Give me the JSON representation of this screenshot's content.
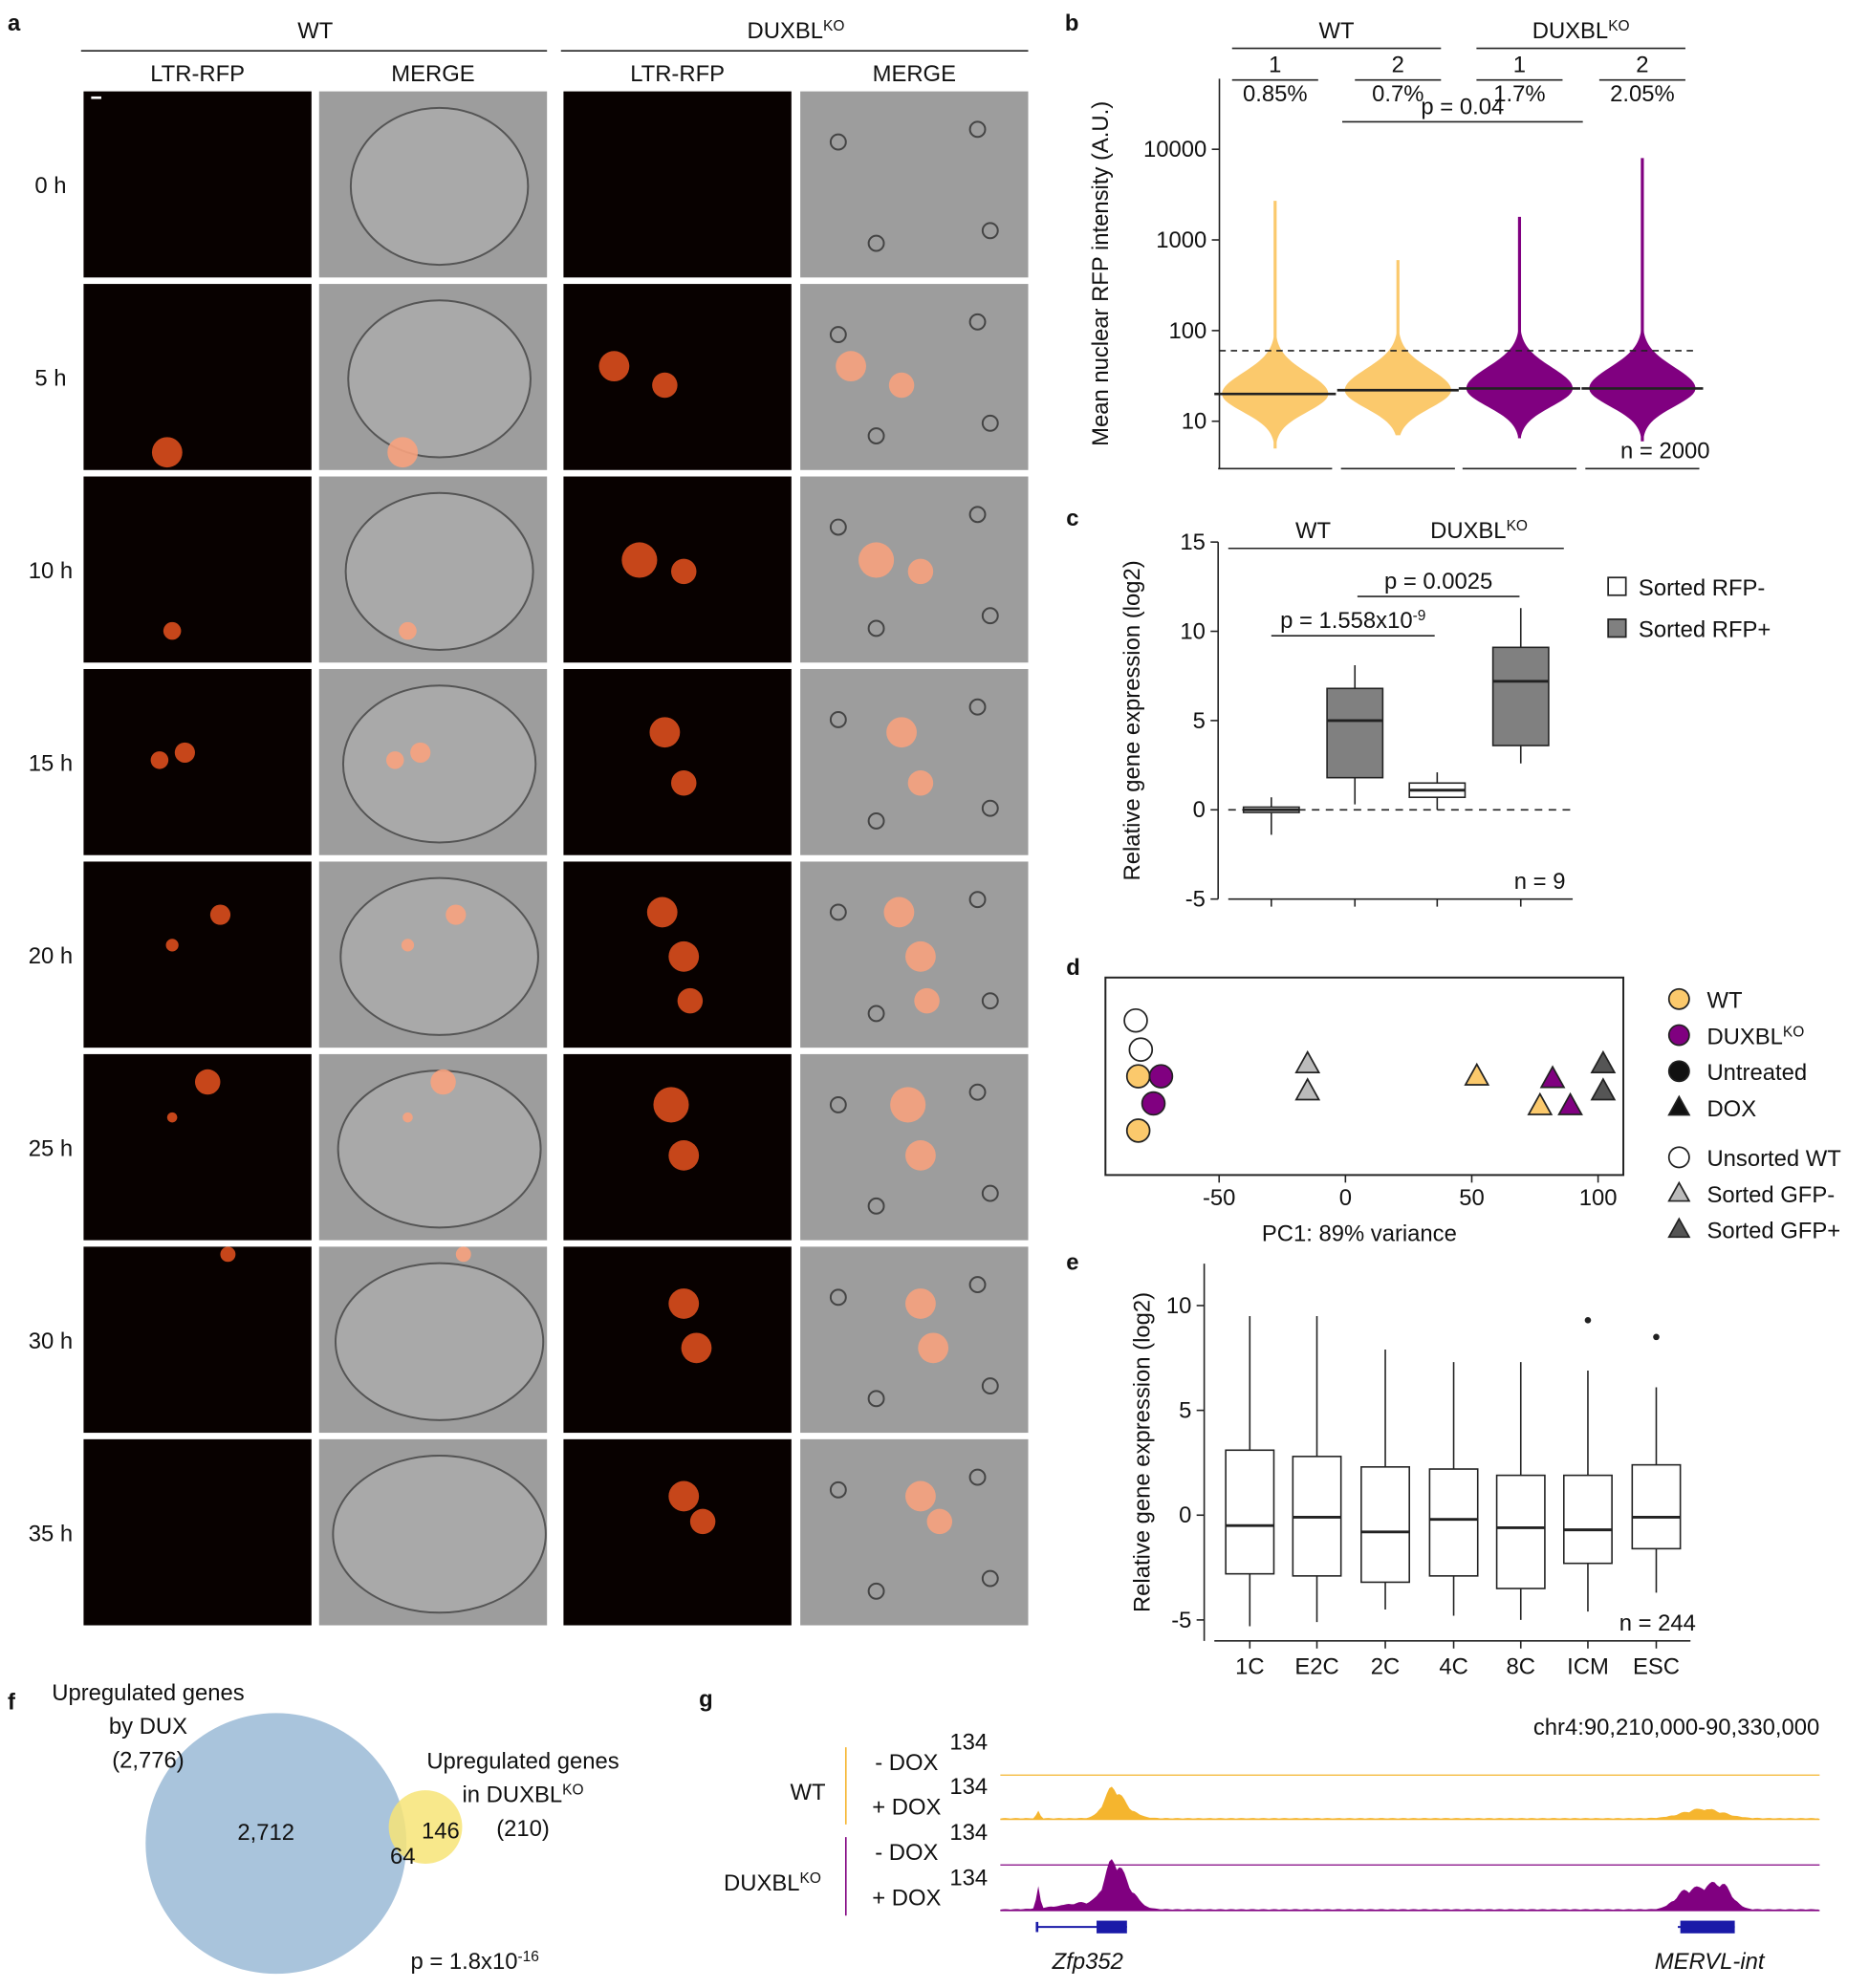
{
  "panel_a": {
    "letter": "a",
    "groups": [
      {
        "text": "WT"
      },
      {
        "text": "DUXBL",
        "sup": "KO"
      }
    ],
    "channels": [
      "LTR-RFP",
      "MERGE"
    ],
    "channel_colors": [
      "#e32119",
      "#111111"
    ],
    "timepoints": [
      "0 h",
      "5 h",
      "10 h",
      "15 h",
      "20 h",
      "25 h",
      "30 h",
      "35 h"
    ]
  },
  "chart_data": [
    {
      "letter": "b",
      "type": "violin",
      "ylabel": "Mean nuclear RFP intensity (A.U.)",
      "log_scale": true,
      "ylim": [
        3,
        60000
      ],
      "yticks": [
        10,
        100,
        1000,
        10000
      ],
      "groups": [
        {
          "text": "WT"
        },
        {
          "text": "DUXBL",
          "sup": "KO"
        }
      ],
      "categories": [
        "1",
        "2",
        "1",
        "2"
      ],
      "colors": [
        "#fbc96c",
        "#fbc96c",
        "#800080",
        "#800080"
      ],
      "values": [
        20,
        22,
        23,
        23
      ],
      "min": [
        5,
        7,
        6.5,
        6
      ],
      "max": [
        2700,
        600,
        1800,
        8000
      ],
      "percent_above": {
        "values": [
          0.85,
          0.7,
          1.7,
          2.05
        ],
        "value_labels": [
          "0.85%",
          "0.7%",
          "1.7%",
          "2.05%"
        ],
        "color": "#e41a1c"
      },
      "threshold": 60,
      "pvalues": [
        {
          "text": "p = 0.04"
        }
      ],
      "n_label": "n = 2000"
    },
    {
      "letter": "c",
      "type": "box",
      "ylabel": "Relative gene expression (log2)",
      "ylim": [
        -5,
        15
      ],
      "yticks": [
        -5,
        0,
        5,
        10,
        15
      ],
      "reference_line": 0,
      "groups": [
        {
          "text": "WT"
        },
        {
          "text": "DUXBL",
          "sup": "KO"
        }
      ],
      "categories": [
        null,
        null,
        null,
        null
      ],
      "series": [
        {
          "name": "Sorted RFP-",
          "color": "#ffffff",
          "boxes": [
            {
              "low": -1.4,
              "q1": -0.15,
              "median": 0,
              "q3": 0.15,
              "high": 0.7
            },
            null,
            {
              "low": 0,
              "q1": 0.7,
              "median": 1.1,
              "q3": 1.5,
              "high": 2.1
            },
            null
          ]
        },
        {
          "name": "Sorted RFP+",
          "color": "#808080",
          "boxes": [
            null,
            {
              "low": 0.3,
              "q1": 1.8,
              "median": 5.0,
              "q3": 6.8,
              "high": 8.1
            },
            null,
            {
              "low": 2.6,
              "q1": 3.6,
              "median": 7.2,
              "q3": 9.1,
              "high": 11.3
            }
          ]
        }
      ],
      "pvalues": [
        {
          "text": "p = 1.558x10",
          "sup": "-9"
        },
        {
          "text": "p = 0.0025"
        }
      ],
      "n_label": "n = 9"
    },
    {
      "letter": "d",
      "type": "scatter",
      "xlabel": "PC1: 89% variance",
      "xlim": [
        -95,
        110
      ],
      "xticks": [
        -50,
        0,
        50,
        100
      ],
      "ylim": [
        -40,
        40
      ],
      "series": [
        {
          "color": "#ffffff",
          "marker": "circle",
          "x": [
            -83,
            -81
          ],
          "y": [
            22.6,
            10.8
          ]
        },
        {
          "color": "#fbc96c",
          "marker": "circle",
          "x": [
            -82,
            -82
          ],
          "y": [
            0,
            -22
          ]
        },
        {
          "color": "#800080",
          "marker": "circle",
          "x": [
            -73,
            -76
          ],
          "y": [
            0,
            -11
          ]
        },
        {
          "color": "#bbbbbb",
          "marker": "triangle",
          "x": [
            -15,
            -15
          ],
          "y": [
            5,
            -6
          ]
        },
        {
          "color": "#fbc96c",
          "marker": "triangle",
          "x": [
            52,
            77
          ],
          "y": [
            0,
            -12
          ]
        },
        {
          "color": "#800080",
          "marker": "triangle",
          "x": [
            82,
            89
          ],
          "y": [
            -1,
            -12
          ]
        },
        {
          "color": "#555555",
          "marker": "triangle",
          "x": [
            102,
            102
          ],
          "y": [
            5,
            -6
          ]
        }
      ],
      "legend": [
        {
          "text": "WT",
          "color": "#fbc96c",
          "marker": "circle"
        },
        {
          "text": "DUXBL",
          "sup": "KO",
          "color": "#800080",
          "marker": "circle"
        },
        {
          "text": "Untreated",
          "color": "#111111",
          "marker": "circle"
        },
        {
          "text": "DOX",
          "color": "#111111",
          "marker": "triangle"
        },
        {
          "text": "Unsorted WT",
          "color": "#ffffff",
          "marker": "circle"
        },
        {
          "text": "Sorted GFP-",
          "color": "#bbbbbb",
          "marker": "triangle"
        },
        {
          "text": "Sorted GFP+",
          "color": "#555555",
          "marker": "triangle"
        }
      ]
    },
    {
      "letter": "e",
      "type": "box",
      "ylabel": "Relative gene expression (log2)",
      "ylim": [
        -6,
        12
      ],
      "yticks": [
        -5,
        0,
        5,
        10
      ],
      "categories": [
        "1C",
        "E2C",
        "2C",
        "4C",
        "8C",
        "ICM",
        "ESC"
      ],
      "series": [
        {
          "color": "#ffffff",
          "boxes": [
            {
              "low": -5.3,
              "q1": -2.8,
              "median": -0.5,
              "q3": 3.1,
              "high": 9.5
            },
            {
              "low": -5.1,
              "q1": -2.9,
              "median": -0.1,
              "q3": 2.8,
              "high": 9.5
            },
            {
              "low": -4.5,
              "q1": -3.2,
              "median": -0.8,
              "q3": 2.3,
              "high": 7.9
            },
            {
              "low": -4.8,
              "q1": -2.9,
              "median": -0.2,
              "q3": 2.2,
              "high": 7.3
            },
            {
              "low": -5.0,
              "q1": -3.5,
              "median": -0.6,
              "q3": 1.9,
              "high": 7.3
            },
            {
              "low": -4.6,
              "q1": -2.3,
              "median": -0.7,
              "q3": 1.9,
              "high": 6.9,
              "outliers": [
                9.3
              ]
            },
            {
              "low": -3.7,
              "q1": -1.6,
              "median": -0.1,
              "q3": 2.4,
              "high": 6.1,
              "outliers": [
                8.5
              ]
            }
          ]
        }
      ],
      "n_label": "n = 244"
    }
  ],
  "panel_f": {
    "letter": "f",
    "sets": [
      {
        "lines": [
          {
            "text": "Upregulated genes"
          },
          {
            "text": "by DUX"
          },
          {
            "text": "(2,776)"
          }
        ],
        "color": "#a9c4dc"
      },
      {
        "lines": [
          {
            "text": "Upregulated genes"
          },
          {
            "text": "in DUXBL",
            "sup": "KO"
          },
          {
            "text": "(210)"
          }
        ],
        "color": "#f7e477"
      }
    ],
    "counts": {
      "only_first": "2,712",
      "only_second": "146",
      "both": "64"
    },
    "pvalue": {
      "text": "p = 1.8x10",
      "sup": "-16"
    }
  },
  "panel_g": {
    "letter": "g",
    "region": "chr4:90,210,000-90,330,000",
    "groups": [
      {
        "label": {
          "text": "WT"
        },
        "color": "#f5b52e",
        "tracks": [
          {
            "label": "- DOX",
            "scale": "134"
          },
          {
            "label": "+ DOX",
            "scale": "134"
          }
        ]
      },
      {
        "label": {
          "text": "DUXBL",
          "sup": "KO"
        },
        "color": "#800080",
        "tracks": [
          {
            "label": "- DOX",
            "scale": "134"
          },
          {
            "label": "+ DOX",
            "scale": "134"
          }
        ]
      }
    ],
    "genes": [
      "Zfp352",
      "MERVL-int"
    ],
    "gene_color": "#1a1aa8"
  }
}
